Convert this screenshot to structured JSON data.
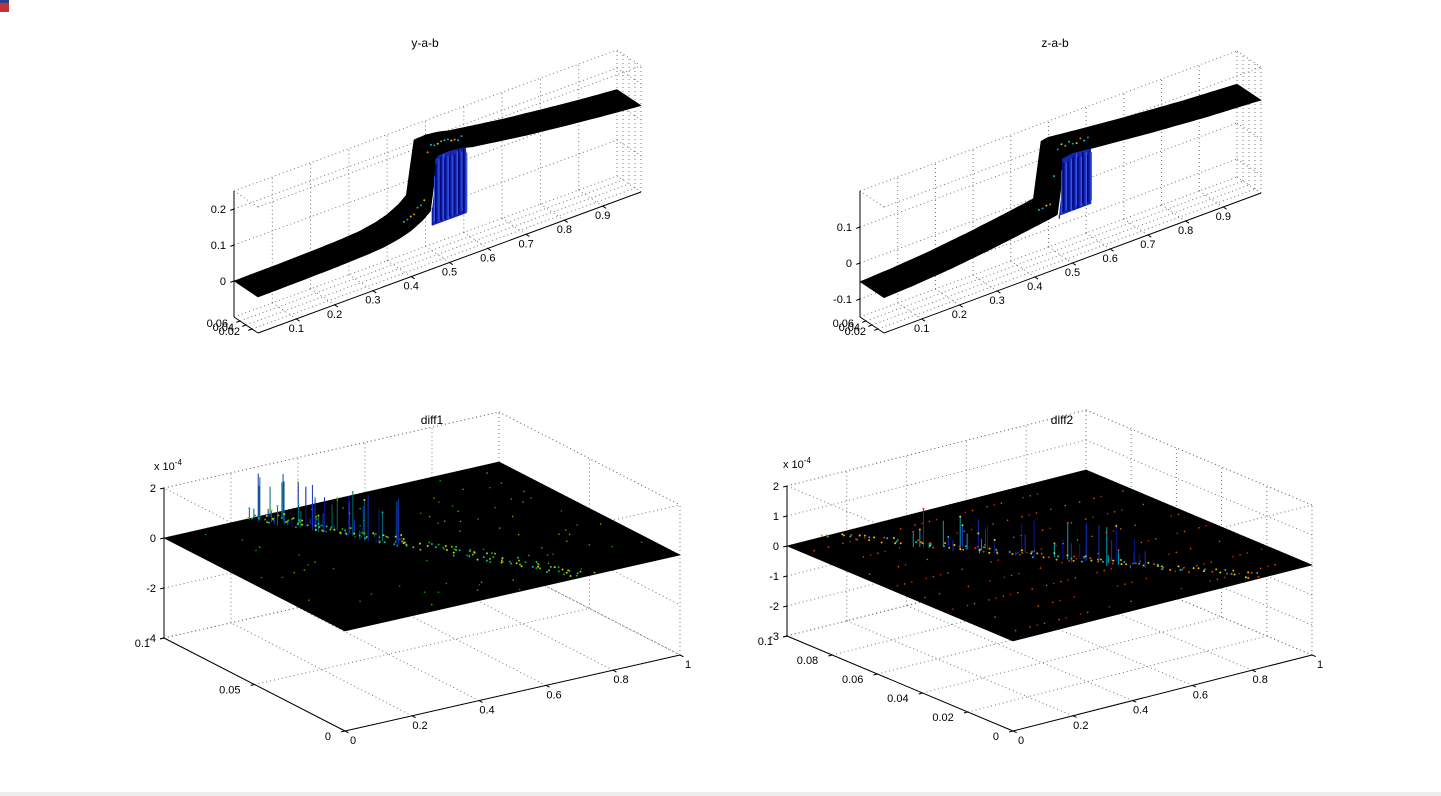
{
  "figure": {
    "background": "#ffffff",
    "grid_style": "dotted",
    "grid_color": "#777777"
  },
  "chart_data": [
    {
      "type": "surface",
      "title": "y-a-b",
      "xlabel": "",
      "ylabel": "",
      "zlabel": "",
      "xlim": [
        0,
        1
      ],
      "ylim": [
        0,
        0.08
      ],
      "zlim": [
        -0.1,
        0.25
      ],
      "xticks": [
        0.1,
        0.2,
        0.3,
        0.4,
        0.5,
        0.6,
        0.7,
        0.8,
        0.9
      ],
      "yticks": [
        0.02,
        0.04,
        0.06
      ],
      "zticks": [
        0,
        0.1,
        0.2
      ],
      "grid": true,
      "legend": null,
      "surface": {
        "color": "#000000",
        "profile": {
          "x": [
            0,
            0.1,
            0.2,
            0.28,
            0.33,
            0.37,
            0.4,
            0.43,
            0.45,
            0.458,
            0.462,
            0.47,
            0.5,
            0.535,
            0.56,
            0.62,
            0.7,
            0.8,
            0.9,
            1
          ],
          "z": [
            0,
            0.001,
            0.003,
            0.006,
            0.01,
            0.018,
            0.028,
            0.045,
            0.062,
            0.075,
            0.2,
            0.208,
            0.21,
            0.205,
            0.198,
            0.188,
            0.175,
            0.162,
            0.15,
            0.14
          ]
        },
        "wall": {
          "x0": 0.455,
          "x1": 0.545,
          "z_base": 0.02,
          "streaks": 30,
          "fill": "#1228b4",
          "streak_colors": [
            "#0a1792",
            "#1c35cc",
            "#3a55e6",
            "#00006a"
          ]
        },
        "ridge": {
          "x0": 0.4,
          "x1": 0.55,
          "count": 18,
          "colors": [
            "#00c2cc",
            "#00a0d0",
            "#cccc00",
            "#e08000"
          ]
        }
      }
    },
    {
      "type": "surface",
      "title": "z-a-b",
      "xlabel": "",
      "ylabel": "",
      "zlabel": "",
      "xlim": [
        0,
        1
      ],
      "ylim": [
        0,
        0.08
      ],
      "zlim": [
        -0.15,
        0.2
      ],
      "xticks": [
        0.1,
        0.2,
        0.3,
        0.4,
        0.5,
        0.6,
        0.7,
        0.8,
        0.9
      ],
      "yticks": [
        0.02,
        0.04,
        0.06
      ],
      "zticks": [
        -0.1,
        0,
        0.1
      ],
      "grid": true,
      "legend": null,
      "surface": {
        "color": "#000000",
        "profile": {
          "x": [
            0,
            0.08,
            0.18,
            0.28,
            0.35,
            0.4,
            0.44,
            0.46,
            0.468,
            0.472,
            0.5,
            0.54,
            0.6,
            0.7,
            0.85,
            1
          ],
          "z": [
            -0.052,
            -0.048,
            -0.04,
            -0.028,
            -0.018,
            -0.01,
            -0.004,
            0,
            0.002,
            0.15,
            0.155,
            0.15,
            0.143,
            0.132,
            0.118,
            0.108
          ]
        },
        "wall": {
          "x0": 0.465,
          "x1": 0.55,
          "z_base": -0.005,
          "streaks": 26,
          "fill": "#1228b4",
          "streak_colors": [
            "#0a1792",
            "#1c35cc",
            "#3a55e6",
            "#00006a"
          ]
        },
        "ridge": {
          "x0": 0.43,
          "x1": 0.56,
          "count": 14,
          "colors": [
            "#00c2cc",
            "#00a0d0",
            "#cccc00",
            "#e08000"
          ]
        }
      }
    },
    {
      "type": "surface",
      "title": "diff1",
      "z_multiplier": {
        "prefix": "x 10",
        "exponent": "-4"
      },
      "xlabel": "",
      "ylabel": "",
      "zlabel": "",
      "xlim": [
        0,
        1
      ],
      "ylim": [
        0,
        0.1
      ],
      "zlim": [
        -4,
        2
      ],
      "xticks": [
        0,
        0.2,
        0.4,
        0.6,
        0.8,
        1
      ],
      "yticks": [
        0,
        0.05,
        0.1
      ],
      "zticks": [
        -4,
        -2,
        0,
        2
      ],
      "grid": true,
      "legend": null,
      "surface": {
        "color": "#000000",
        "base_z": 0,
        "spikes": {
          "x_front": 0.72,
          "x_back": 0.27,
          "y_min": 0.55,
          "y_max": 1,
          "max_height": 2,
          "count": 60,
          "colors": [
            "#0a1792",
            "#1330c0",
            "#006a6a",
            "#004f9e"
          ]
        },
        "band": {
          "count": 130,
          "jitter": 0.035,
          "colors": [
            "#7ac000",
            "#00b000",
            "#cfd000",
            "#00b8b8"
          ]
        },
        "scatter": {
          "count": 80,
          "colors": [
            "#00a000",
            "#6aa000"
          ]
        }
      }
    },
    {
      "type": "surface",
      "title": "diff2",
      "z_multiplier": {
        "prefix": "x 10",
        "exponent": "-4"
      },
      "xlabel": "",
      "ylabel": "",
      "zlabel": "",
      "xlim": [
        0,
        1
      ],
      "ylim": [
        0,
        0.1
      ],
      "zlim": [
        -3,
        2
      ],
      "xticks": [
        0,
        0.2,
        0.4,
        0.6,
        0.8,
        1
      ],
      "yticks": [
        0,
        0.02,
        0.04,
        0.06,
        0.08,
        0.1
      ],
      "zticks": [
        -3,
        -2,
        -1,
        0,
        1,
        2
      ],
      "grid": true,
      "legend": null,
      "surface": {
        "color": "#000000",
        "base_z": 0,
        "spikes": {
          "x_front": 0.83,
          "x_back": 0.13,
          "y_min": 0.25,
          "y_max": 0.8,
          "max_height": 1.4,
          "count": 50,
          "colors": [
            "#0a1792",
            "#00a0c0",
            "#1330c0"
          ]
        },
        "band": {
          "count": 110,
          "jitter": 0.03,
          "colors": [
            "#d04000",
            "#ffa000",
            "#d8d800",
            "#00c0c0"
          ]
        },
        "mesh_dots": {
          "rows": 8,
          "cols": 40,
          "keep": 0.55,
          "colors": [
            "#cc2200",
            "#dd5500"
          ]
        }
      }
    }
  ]
}
